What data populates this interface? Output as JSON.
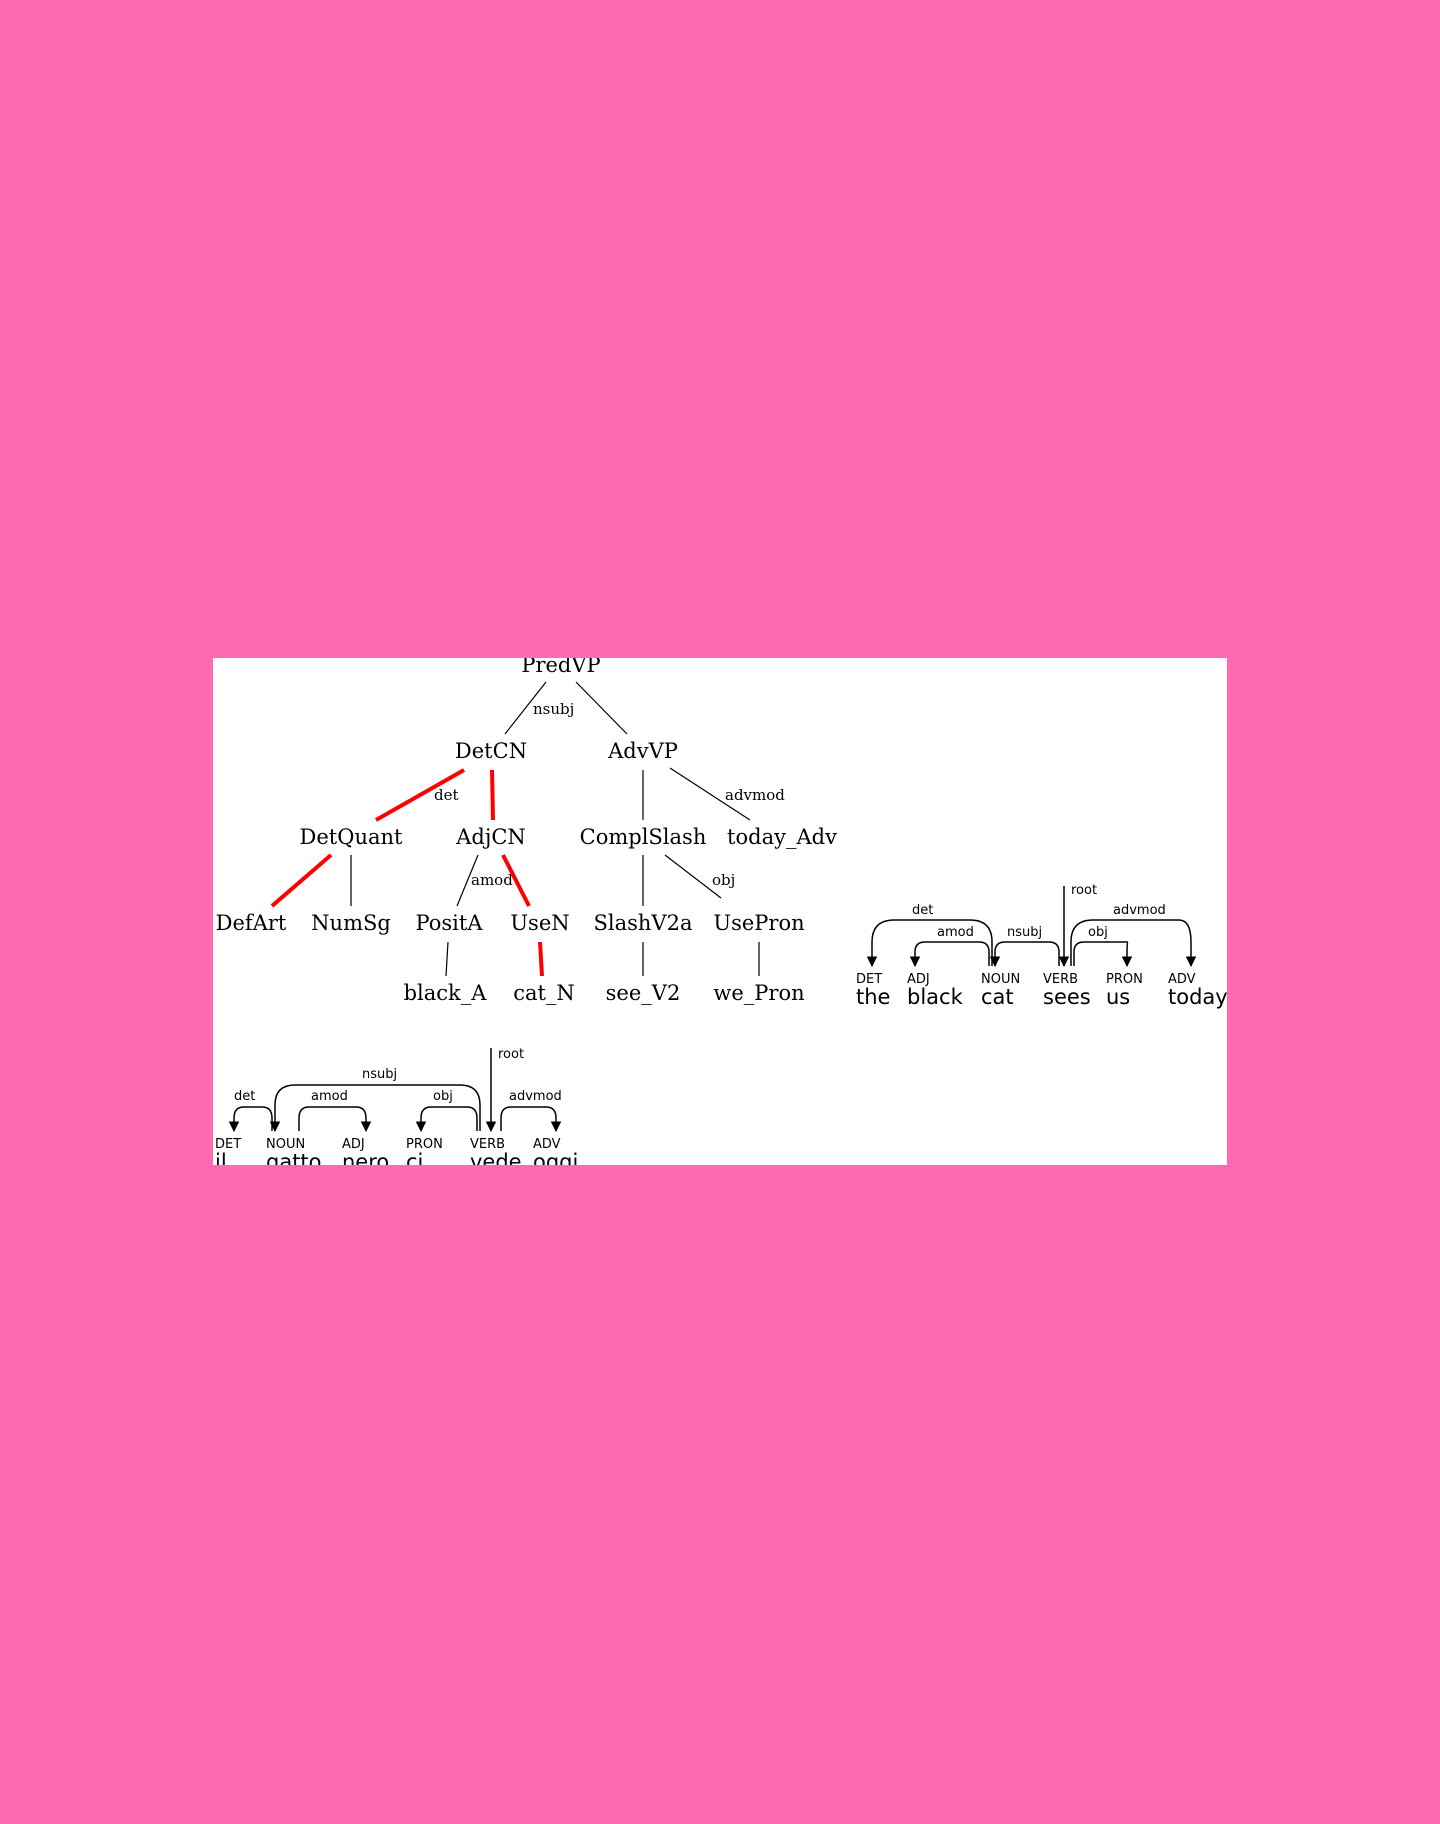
{
  "tree": {
    "nodes": {
      "predvp": "PredVP",
      "detcn": "DetCN",
      "advvp": "AdvVP",
      "detquant": "DetQuant",
      "adjcn": "AdjCN",
      "complslash": "ComplSlash",
      "today_adv": "today_Adv",
      "defart": "DefArt",
      "numsg": "NumSg",
      "posita": "PositA",
      "usen": "UseN",
      "slashv2a": "SlashV2a",
      "usepron": "UsePron",
      "black_a": "black_A",
      "cat_n": "cat_N",
      "see_v2": "see_V2",
      "we_pron": "we_Pron"
    },
    "edge_labels": {
      "nsubj": "nsubj",
      "det": "det",
      "advmod": "advmod",
      "amod": "amod",
      "obj": "obj"
    },
    "highlight_color": "#ff0000"
  },
  "english_dep": {
    "tokens": [
      {
        "pos": "DET",
        "word": "the"
      },
      {
        "pos": "ADJ",
        "word": "black"
      },
      {
        "pos": "NOUN",
        "word": "cat"
      },
      {
        "pos": "VERB",
        "word": "sees"
      },
      {
        "pos": "PRON",
        "word": "us"
      },
      {
        "pos": "ADV",
        "word": "today"
      }
    ],
    "relations": {
      "root": "root",
      "det": "det",
      "amod": "amod",
      "nsubj": "nsubj",
      "obj": "obj",
      "advmod": "advmod"
    }
  },
  "italian_dep": {
    "tokens": [
      {
        "pos": "DET",
        "word": "il"
      },
      {
        "pos": "NOUN",
        "word": "gatto"
      },
      {
        "pos": "ADJ",
        "word": "nero"
      },
      {
        "pos": "PRON",
        "word": "ci"
      },
      {
        "pos": "VERB",
        "word": "vede"
      },
      {
        "pos": "ADV",
        "word": "oggi"
      }
    ],
    "relations": {
      "root": "root",
      "det": "det",
      "amod": "amod",
      "nsubj": "nsubj",
      "obj": "obj",
      "advmod": "advmod"
    }
  }
}
